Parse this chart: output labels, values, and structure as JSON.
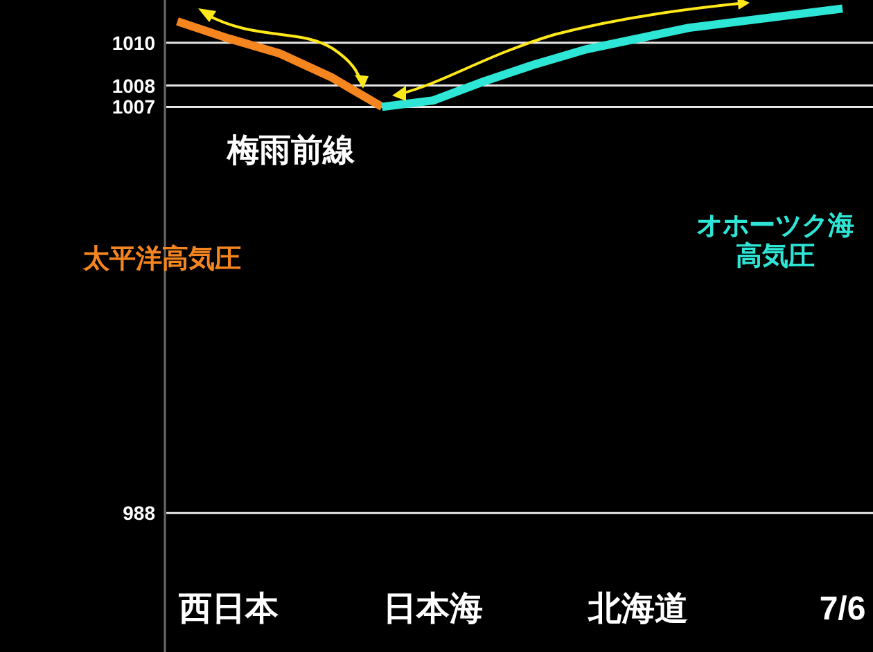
{
  "chart_data": {
    "type": "line",
    "categories": [
      null,
      "西日本",
      null,
      null,
      null,
      "日本海",
      null,
      null,
      null,
      "北海道",
      null,
      null,
      null,
      "7/6"
    ],
    "series": [
      {
        "name": "太平洋高気圧",
        "color": "#f5851f",
        "values": [
          1011.0,
          1010.2,
          1009.5,
          1008.4,
          1007.0,
          null,
          null,
          null,
          null,
          null,
          null,
          null,
          null,
          null
        ]
      },
      {
        "name": "オホーツク海高気圧",
        "color": "#2ee6d6",
        "values": [
          null,
          null,
          null,
          null,
          1007.0,
          1007.3,
          1008.2,
          1009.0,
          1009.7,
          1010.2,
          1010.7,
          1011.0,
          1011.3,
          1011.6
        ]
      }
    ],
    "ylim": [
      981.5,
      1012
    ],
    "yticks": [
      1010,
      1008,
      1007,
      988
    ],
    "grid": "y",
    "annotations": [
      "梅雨前線"
    ]
  }
}
